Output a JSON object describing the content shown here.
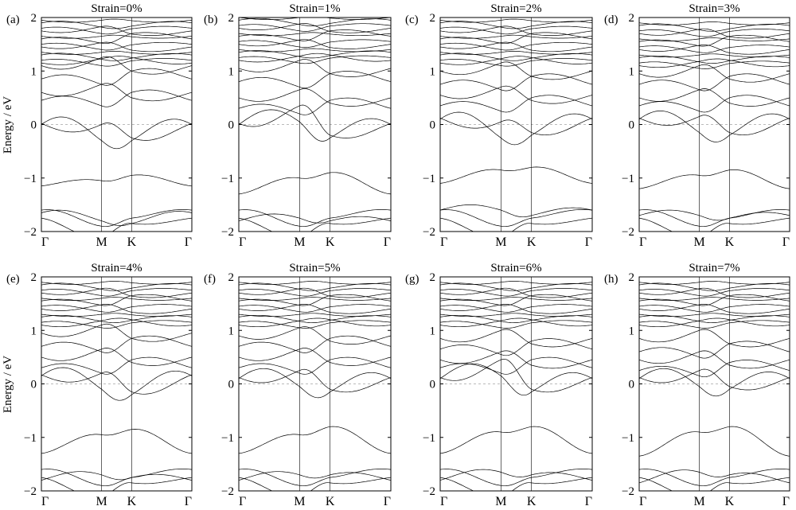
{
  "figure": {
    "ylabel": "Energy / eV",
    "y_tick_labels": [
      "2",
      "1",
      "0",
      "−1",
      "−2"
    ]
  },
  "chart_data": [
    {
      "type": "line",
      "panel": "(a)",
      "title": "Strain=0%",
      "ylabel": "Energy / eV",
      "ylim": [
        -2,
        2
      ],
      "x_labels": [
        "Γ",
        "M",
        "K",
        "Γ"
      ],
      "k_positions": [
        0,
        0.577,
        0.866,
        1.443
      ],
      "conduction_min_at_gamma": 0.0,
      "conduction_min_at_M": -0.3,
      "conduction_min_at_K": -0.3,
      "valence_max_at_gamma": -1.15,
      "valence_max_at_M": -1.05,
      "valence_max_at_K": -0.95,
      "mid_levels": [
        0.45,
        0.6,
        0.85,
        1.1
      ],
      "high_levels": [
        1.15,
        1.3,
        1.45,
        1.6,
        1.75,
        1.9
      ]
    },
    {
      "type": "line",
      "panel": "(b)",
      "title": "Strain=1%",
      "ylabel": "",
      "ylim": [
        -2,
        2
      ],
      "x_labels": [
        "Γ",
        "M",
        "K",
        "Γ"
      ],
      "k_positions": [
        0,
        0.577,
        0.866,
        1.443
      ],
      "conduction_min_at_gamma": 0.0,
      "conduction_min_at_M": 0.05,
      "conduction_min_at_K": -0.25,
      "valence_max_at_gamma": -1.3,
      "valence_max_at_M": -1.0,
      "valence_max_at_K": -0.9,
      "mid_levels": [
        0.3,
        0.5,
        0.8,
        1.05
      ],
      "high_levels": [
        1.2,
        1.35,
        1.5,
        1.65,
        1.8,
        1.95
      ]
    },
    {
      "type": "line",
      "panel": "(c)",
      "title": "Strain=2%",
      "ylabel": "",
      "ylim": [
        -2,
        2
      ],
      "x_labels": [
        "Γ",
        "M",
        "K",
        "Γ"
      ],
      "k_positions": [
        0,
        0.577,
        0.866,
        1.443
      ],
      "conduction_min_at_gamma": 0.1,
      "conduction_min_at_M": -0.25,
      "conduction_min_at_K": -0.2,
      "valence_max_at_gamma": -1.1,
      "valence_max_at_M": -0.85,
      "valence_max_at_K": -0.8,
      "mid_levels": [
        0.35,
        0.55,
        0.75,
        1.0
      ],
      "high_levels": [
        1.15,
        1.3,
        1.45,
        1.6,
        1.75,
        1.9
      ]
    },
    {
      "type": "line",
      "panel": "(d)",
      "title": "Strain=3%",
      "ylabel": "",
      "ylim": [
        -2,
        2
      ],
      "x_labels": [
        "Γ",
        "M",
        "K",
        "Γ"
      ],
      "k_positions": [
        0,
        0.577,
        0.866,
        1.443
      ],
      "conduction_min_at_gamma": 0.1,
      "conduction_min_at_M": -0.15,
      "conduction_min_at_K": -0.2,
      "valence_max_at_gamma": -1.2,
      "valence_max_at_M": -0.95,
      "valence_max_at_K": -0.85,
      "mid_levels": [
        0.35,
        0.5,
        0.75,
        0.95
      ],
      "high_levels": [
        1.1,
        1.25,
        1.4,
        1.55,
        1.7,
        1.85
      ]
    },
    {
      "type": "line",
      "panel": "(e)",
      "title": "Strain=4%",
      "ylabel": "Energy / eV",
      "ylim": [
        -2,
        2
      ],
      "x_labels": [
        "Γ",
        "M",
        "K",
        "Γ"
      ],
      "k_positions": [
        0,
        0.577,
        0.866,
        1.443
      ],
      "conduction_min_at_gamma": 0.15,
      "conduction_min_at_M": -0.1,
      "conduction_min_at_K": -0.2,
      "valence_max_at_gamma": -1.3,
      "valence_max_at_M": -0.95,
      "valence_max_at_K": -0.85,
      "mid_levels": [
        0.3,
        0.5,
        0.7,
        0.95
      ],
      "high_levels": [
        1.1,
        1.25,
        1.4,
        1.55,
        1.7,
        1.85
      ]
    },
    {
      "type": "line",
      "panel": "(f)",
      "title": "Strain=5%",
      "ylabel": "",
      "ylim": [
        -2,
        2
      ],
      "x_labels": [
        "Γ",
        "M",
        "K",
        "Γ"
      ],
      "k_positions": [
        0,
        0.577,
        0.866,
        1.443
      ],
      "conduction_min_at_gamma": 0.1,
      "conduction_min_at_M": -0.05,
      "conduction_min_at_K": -0.15,
      "valence_max_at_gamma": -1.3,
      "valence_max_at_M": -0.95,
      "valence_max_at_K": -0.8,
      "mid_levels": [
        0.3,
        0.5,
        0.7,
        0.9
      ],
      "high_levels": [
        1.1,
        1.25,
        1.4,
        1.55,
        1.7,
        1.85
      ]
    },
    {
      "type": "line",
      "panel": "(g)",
      "title": "Strain=6%",
      "ylabel": "",
      "ylim": [
        -2,
        2
      ],
      "x_labels": [
        "Γ",
        "M",
        "K",
        "Γ"
      ],
      "k_positions": [
        0,
        0.577,
        0.866,
        1.443
      ],
      "conduction_min_at_gamma": 0.1,
      "conduction_min_at_M": 0.15,
      "conduction_min_at_K": -0.15,
      "valence_max_at_gamma": -1.3,
      "valence_max_at_M": -0.9,
      "valence_max_at_K": -0.8,
      "mid_levels": [
        0.3,
        0.45,
        0.65,
        0.85
      ],
      "high_levels": [
        1.1,
        1.25,
        1.4,
        1.55,
        1.7,
        1.85
      ]
    },
    {
      "type": "line",
      "panel": "(h)",
      "title": "Strain=7%",
      "ylabel": "",
      "ylim": [
        -2,
        2
      ],
      "x_labels": [
        "Γ",
        "M",
        "K",
        "Γ"
      ],
      "k_positions": [
        0,
        0.577,
        0.866,
        1.443
      ],
      "conduction_min_at_gamma": 0.1,
      "conduction_min_at_M": -0.05,
      "conduction_min_at_K": -0.1,
      "valence_max_at_gamma": -1.35,
      "valence_max_at_M": -0.9,
      "valence_max_at_K": -0.8,
      "mid_levels": [
        0.25,
        0.45,
        0.6,
        0.85
      ],
      "high_levels": [
        1.1,
        1.25,
        1.4,
        1.55,
        1.7,
        1.85
      ]
    }
  ]
}
